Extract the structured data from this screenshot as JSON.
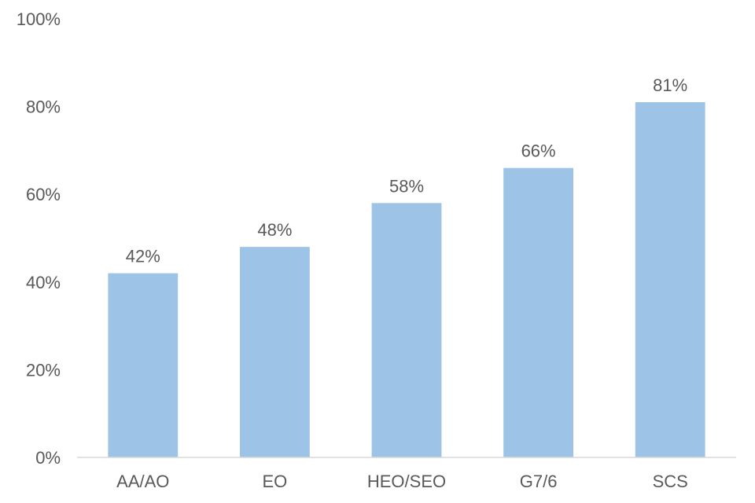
{
  "chart_data": {
    "type": "bar",
    "categories": [
      "AA/AO",
      "EO",
      "HEO/SEO",
      "G7/6",
      "SCS"
    ],
    "values": [
      42,
      48,
      58,
      66,
      81
    ],
    "value_labels": [
      "42%",
      "48%",
      "58%",
      "66%",
      "81%"
    ],
    "title": "",
    "xlabel": "",
    "ylabel": "",
    "ylim": [
      0,
      100
    ],
    "y_ticks": [
      0,
      20,
      40,
      60,
      80,
      100
    ],
    "y_tick_labels": [
      "0%",
      "20%",
      "40%",
      "60%",
      "80%",
      "100%"
    ],
    "grid": false,
    "legend": "none",
    "bar_color": "#9dc3e6",
    "axis_color": "#d9d9d9",
    "text_color": "#595959"
  }
}
